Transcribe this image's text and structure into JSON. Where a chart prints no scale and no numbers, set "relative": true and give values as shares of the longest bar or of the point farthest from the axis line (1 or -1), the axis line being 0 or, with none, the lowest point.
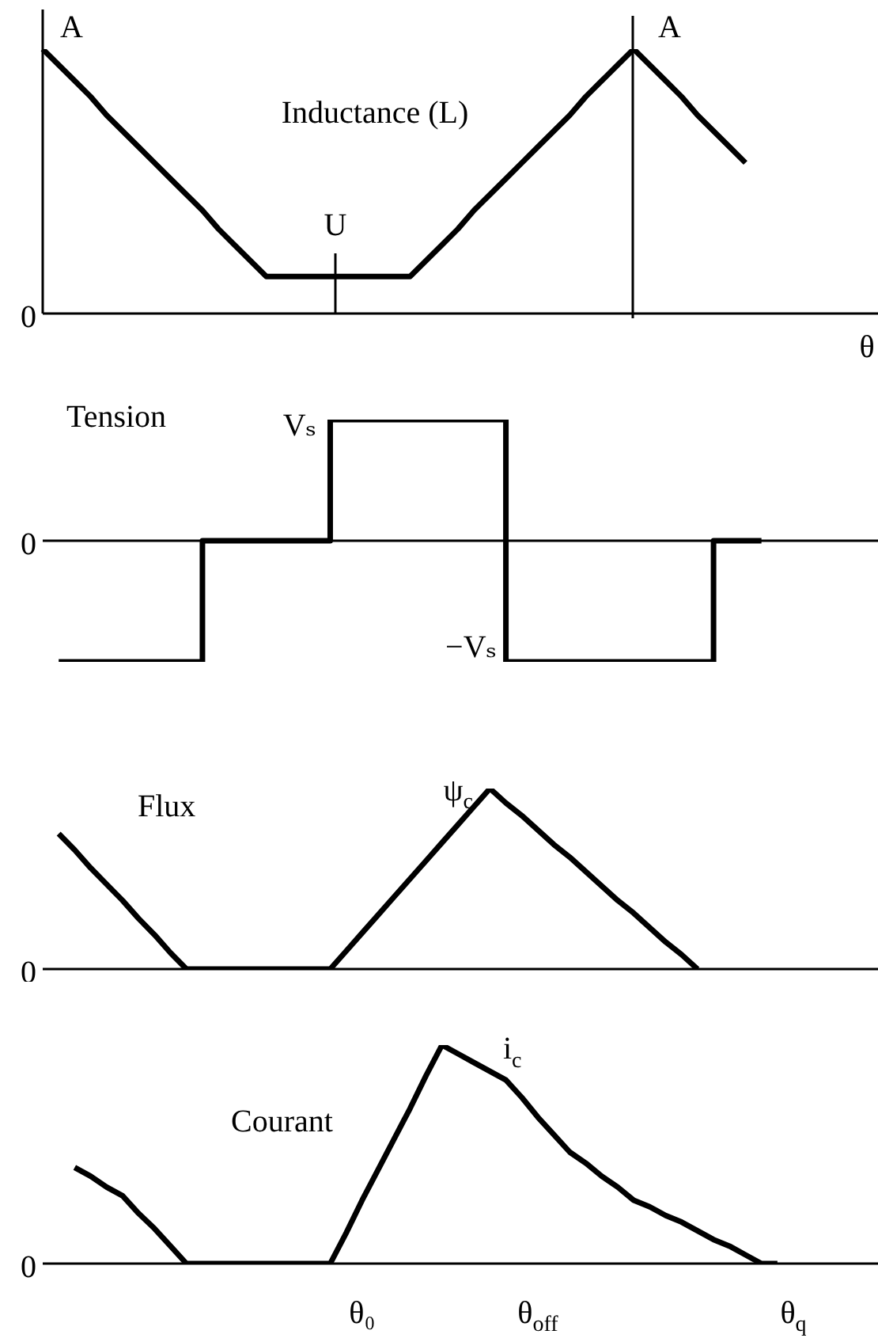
{
  "chart_data": [
    {
      "type": "line",
      "title": "Inductance (L)",
      "xlabel": "θ",
      "relative": true,
      "tick_labels": false,
      "marker": "none",
      "line_style": "solid",
      "legend": false,
      "categories": [
        null,
        null,
        null,
        null,
        null,
        null,
        null,
        null,
        null,
        null,
        null,
        null,
        null,
        null,
        null,
        null,
        null,
        null,
        null,
        null,
        null,
        null,
        null,
        null,
        null,
        null,
        null,
        null,
        null,
        null,
        null,
        null,
        null,
        null,
        null,
        null,
        null,
        null,
        null,
        null,
        null,
        null,
        null,
        null,
        null,
        null,
        null,
        null,
        null,
        null,
        null,
        null,
        null
      ],
      "series": [
        {
          "color": "#000000",
          "values": [
            1,
            0.94,
            0.88,
            0.82,
            0.75,
            0.69,
            0.63,
            0.57,
            0.51,
            0.45,
            0.39,
            0.32,
            0.26,
            0.2,
            0.14,
            0.14,
            0.14,
            0.14,
            0.14,
            0.14,
            0.14,
            0.14,
            0.14,
            0.14,
            0.2,
            0.26,
            0.32,
            0.39,
            0.45,
            0.51,
            0.57,
            0.63,
            0.69,
            0.75,
            0.82,
            0.88,
            0.94,
            1,
            0.94,
            0.88,
            0.82,
            0.75,
            0.69,
            0.63,
            0.57,
            null,
            null,
            null,
            null,
            null,
            null,
            null,
            null
          ]
        }
      ],
      "annotations": [
        "0",
        "A",
        "U",
        "A"
      ]
    },
    {
      "type": "step",
      "title": "Tension",
      "relative": true,
      "tick_labels": false,
      "marker": "none",
      "line_style": "solid",
      "legend": false,
      "categories": [
        null,
        null,
        null,
        null,
        null,
        null,
        null,
        null,
        null,
        null,
        null,
        null,
        null,
        null,
        null,
        null,
        null,
        null,
        null,
        null,
        null,
        null,
        null,
        null,
        null,
        null,
        null,
        null,
        null,
        null,
        null,
        null,
        null,
        null,
        null,
        null,
        null,
        null,
        null,
        null,
        null,
        null,
        null,
        null,
        null,
        null,
        null,
        null,
        null,
        null,
        null,
        null,
        null
      ],
      "series": [
        {
          "color": "#000000",
          "values": [
            null,
            -1,
            -1,
            -1,
            -1,
            -1,
            -1,
            -1,
            -1,
            -1,
            0,
            0,
            0,
            0,
            0,
            0,
            0,
            0,
            1,
            1,
            1,
            1,
            1,
            1,
            1,
            1,
            1,
            1,
            1,
            -1,
            -1,
            -1,
            -1,
            -1,
            -1,
            -1,
            -1,
            -1,
            -1,
            -1,
            -1,
            -1,
            0,
            0,
            0,
            0,
            null,
            null,
            null,
            null,
            null,
            null,
            null
          ]
        }
      ],
      "annotations": [
        "0",
        "Vₛ",
        "−Vₛ"
      ]
    },
    {
      "type": "line",
      "title": "Flux",
      "relative": true,
      "tick_labels": false,
      "marker": "none",
      "line_style": "solid",
      "legend": false,
      "categories": [
        null,
        null,
        null,
        null,
        null,
        null,
        null,
        null,
        null,
        null,
        null,
        null,
        null,
        null,
        null,
        null,
        null,
        null,
        null,
        null,
        null,
        null,
        null,
        null,
        null,
        null,
        null,
        null,
        null,
        null,
        null,
        null,
        null,
        null,
        null,
        null,
        null,
        null,
        null,
        null,
        null,
        null,
        null,
        null,
        null,
        null,
        null,
        null,
        null,
        null,
        null,
        null,
        null
      ],
      "series": [
        {
          "color": "#000000",
          "values": [
            null,
            0.75,
            0.66,
            0.56,
            0.47,
            0.38,
            0.28,
            0.19,
            0.09,
            0,
            0,
            0,
            0,
            0,
            0,
            0,
            0,
            0,
            0,
            0.1,
            0.2,
            0.3,
            0.4,
            0.5,
            0.6,
            0.7,
            0.8,
            0.9,
            1,
            0.92,
            0.85,
            0.77,
            0.69,
            0.62,
            0.54,
            0.46,
            0.38,
            0.31,
            0.23,
            0.15,
            0.08,
            0,
            null,
            null,
            null,
            null,
            null,
            null,
            null,
            null,
            null,
            null,
            null
          ]
        }
      ],
      "annotations": [
        "0",
        "ψ$_{c}$"
      ]
    },
    {
      "type": "line",
      "title": "Courant",
      "relative": true,
      "tick_labels": "x",
      "marker": "none",
      "line_style": "solid",
      "legend": false,
      "categories": [
        null,
        null,
        null,
        null,
        null,
        null,
        null,
        null,
        null,
        null,
        null,
        null,
        null,
        null,
        null,
        null,
        null,
        null,
        null,
        null,
        "θ₀",
        null,
        null,
        null,
        null,
        null,
        null,
        null,
        null,
        null,
        null,
        "θ$_{off}$",
        null,
        null,
        null,
        null,
        null,
        null,
        null,
        null,
        null,
        null,
        null,
        null,
        null,
        null,
        null,
        "θ$_{q}$",
        null,
        null,
        null,
        null,
        null
      ],
      "series": [
        {
          "color": "#000000",
          "values": [
            null,
            null,
            0.44,
            0.4,
            0.35,
            0.31,
            0.23,
            0.16,
            0.08,
            0,
            0,
            0,
            0,
            0,
            0,
            0,
            0,
            0,
            0,
            0.14,
            0.29,
            0.43,
            0.57,
            0.71,
            0.86,
            1,
            0.96,
            0.92,
            0.88,
            0.84,
            0.76,
            0.67,
            0.59,
            0.51,
            0.46,
            0.4,
            0.35,
            0.29,
            0.26,
            0.22,
            0.19,
            0.15,
            0.11,
            0.08,
            0.04,
            0,
            0,
            null,
            null,
            null,
            null,
            null,
            null
          ]
        }
      ],
      "annotations": [
        "0",
        {
          "text": "i$_{c}$",
          "y": 0.84
        }
      ]
    }
  ]
}
